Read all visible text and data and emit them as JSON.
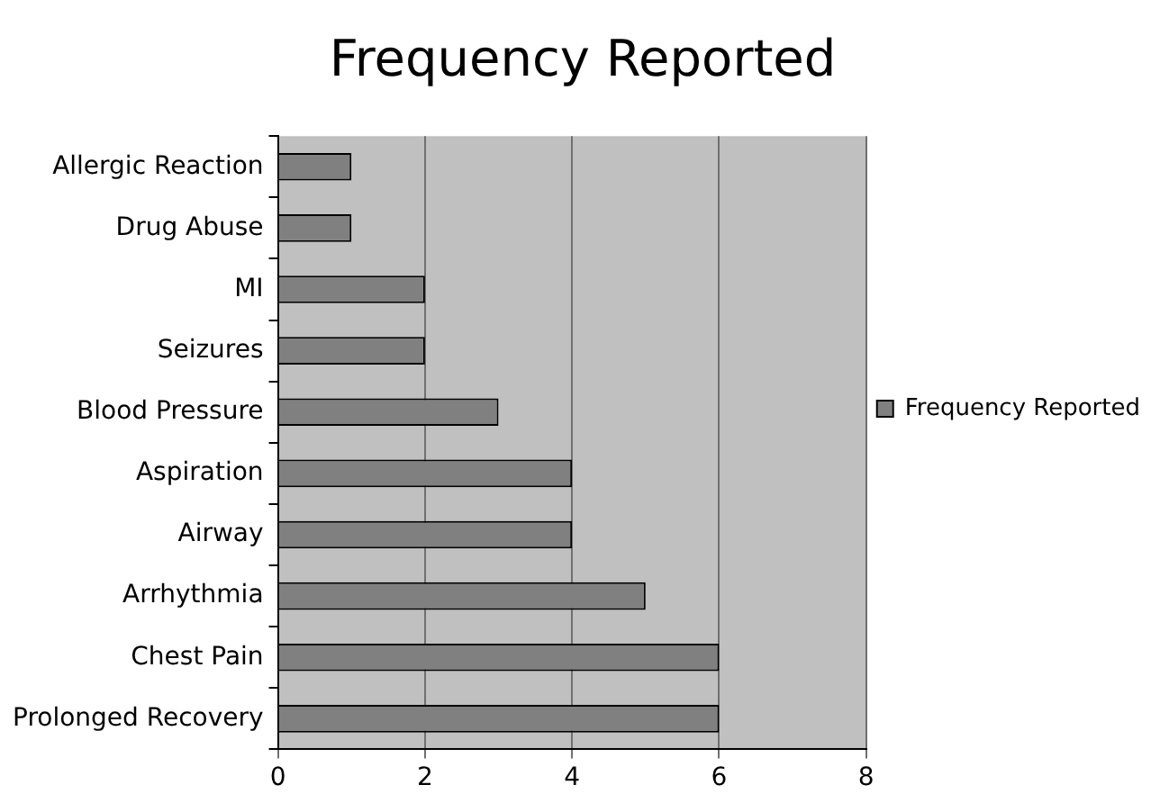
{
  "chart_data": {
    "type": "bar",
    "title": "Frequency Reported",
    "orientation": "horizontal",
    "categories": [
      "Allergic Reaction",
      "Drug Abuse",
      "MI",
      "Seizures",
      "Blood Pressure",
      "Aspiration",
      "Airway",
      "Arrhythmia",
      "Chest Pain",
      "Prolonged Recovery"
    ],
    "series": [
      {
        "name": "Frequency Reported",
        "color": "#808080",
        "values": [
          1,
          1,
          2,
          2,
          3,
          4,
          4,
          5,
          6,
          6
        ]
      }
    ],
    "xlim": [
      0,
      8
    ],
    "xticks": [
      0,
      2,
      4,
      6,
      8
    ],
    "grid": "x",
    "legend": "right"
  }
}
